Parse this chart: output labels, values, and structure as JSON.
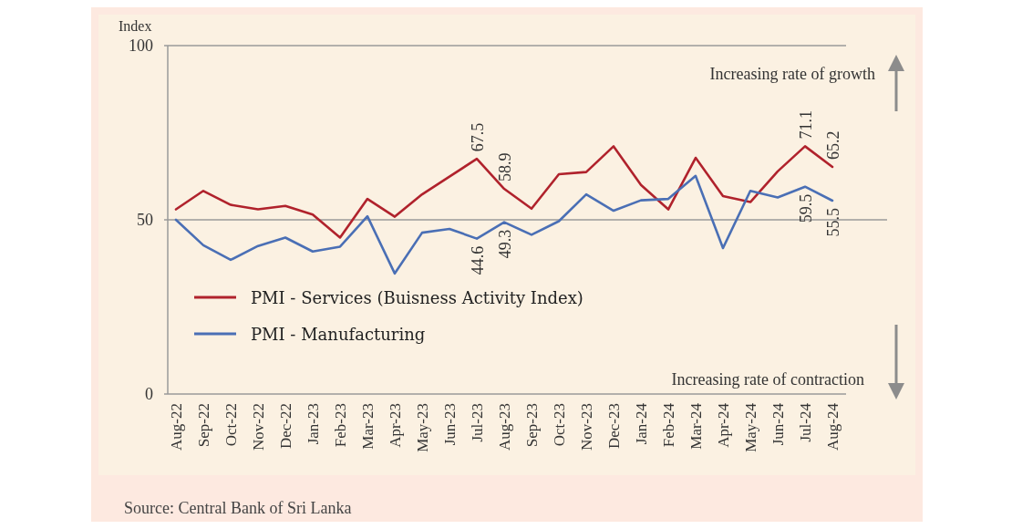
{
  "chart_data": {
    "type": "line",
    "ylabel": "Index",
    "categories": [
      "Aug-22",
      "Sep-22",
      "Oct-22",
      "Nov-22",
      "Dec-22",
      "Jan-23",
      "Feb-23",
      "Mar-23",
      "Apr-23",
      "May-23",
      "Jun-23",
      "Jul-23",
      "Aug-23",
      "Sep-23",
      "Oct-23",
      "Nov-23",
      "Dec-23",
      "Jan-24",
      "Feb-24",
      "Mar-24",
      "Apr-24",
      "May-24",
      "Jun-24",
      "Jul-24",
      "Aug-24"
    ],
    "series": [
      {
        "name": "PMI - Services (Buisness Activity Index)",
        "color": "#b0222c",
        "values": [
          53.0,
          58.3,
          54.3,
          53.0,
          54.0,
          51.5,
          44.9,
          56.0,
          50.9,
          57.3,
          62.4,
          67.5,
          58.9,
          53.2,
          63.1,
          63.7,
          71.1,
          60.0,
          53.0,
          67.8,
          56.8,
          55.1,
          63.9,
          71.1,
          65.2
        ],
        "value_labels": [
          null,
          null,
          null,
          null,
          null,
          null,
          null,
          null,
          null,
          null,
          null,
          "67.5",
          "58.9",
          null,
          null,
          null,
          null,
          null,
          null,
          null,
          null,
          null,
          null,
          "71.1",
          "65.2"
        ]
      },
      {
        "name": "PMI - Manufacturing",
        "color": "#4a6fb5",
        "values": [
          50.0,
          42.7,
          38.5,
          42.5,
          44.9,
          40.9,
          42.3,
          51.0,
          34.6,
          46.3,
          47.4,
          44.6,
          49.3,
          45.7,
          49.6,
          57.3,
          52.6,
          55.6,
          56.0,
          62.6,
          41.9,
          58.3,
          56.4,
          59.5,
          55.5
        ],
        "value_labels": [
          null,
          null,
          null,
          null,
          null,
          null,
          null,
          null,
          null,
          null,
          null,
          "44.6",
          "49.3",
          null,
          null,
          null,
          null,
          null,
          null,
          null,
          null,
          null,
          null,
          "59.5",
          "55.5"
        ]
      }
    ],
    "ylim": [
      0,
      100
    ],
    "yticks": [
      0,
      50,
      100
    ],
    "grid": "y",
    "legend": "left",
    "annotations": [
      "Increasing rate of growth",
      "Increasing rate of contraction",
      "Source: Central Bank of Sri Lanka"
    ]
  }
}
